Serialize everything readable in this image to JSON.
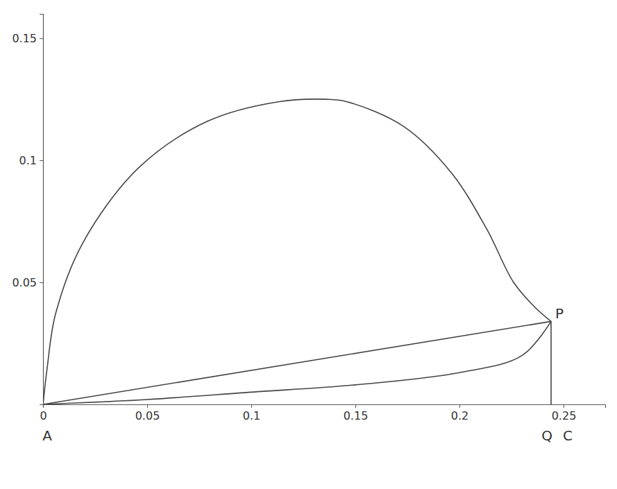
{
  "chart_data": {
    "type": "line",
    "xlim": [
      0,
      0.27
    ],
    "ylim": [
      0,
      0.16
    ],
    "xticks": [
      0,
      0.05,
      0.1,
      0.15,
      0.2,
      0.25
    ],
    "yticks": [
      0.05,
      0.1,
      0.15
    ],
    "grid": false,
    "series": [
      {
        "color": "#444444",
        "line_style": "solid",
        "x": [
          0,
          0.002,
          0.006,
          0.019,
          0.046,
          0.079,
          0.113,
          0.136,
          0.146,
          0.173,
          0.196,
          0.213,
          0.226,
          0.236,
          0.244
        ],
        "values": [
          0,
          0.015,
          0.037,
          0.066,
          0.097,
          0.116,
          0.124,
          0.125,
          0.124,
          0.114,
          0.095,
          0.072,
          0.05,
          0.04,
          0.034
        ]
      },
      {
        "color": "#444444",
        "line_style": "solid",
        "x": [
          0,
          0.05,
          0.1,
          0.15,
          0.2,
          0.23,
          0.244
        ],
        "values": [
          0,
          0.002,
          0.005,
          0.008,
          0.013,
          0.02,
          0.034
        ]
      },
      {
        "color": "#444444",
        "line_style": "solid",
        "x": [
          0,
          0.244
        ],
        "values": [
          0,
          0.034
        ]
      },
      {
        "color": "#444444",
        "line_style": "solid",
        "x": [
          0.244,
          0.244
        ],
        "values": [
          0.034,
          0
        ]
      }
    ],
    "annotations": [
      {
        "text": "A",
        "x": 0.002,
        "y": 0
      },
      {
        "text": "Q",
        "x": 0.242,
        "y": 0
      },
      {
        "text": "C",
        "x": 0.252,
        "y": 0
      },
      {
        "text": "P",
        "x": 0.244,
        "y": 0.034
      }
    ]
  }
}
